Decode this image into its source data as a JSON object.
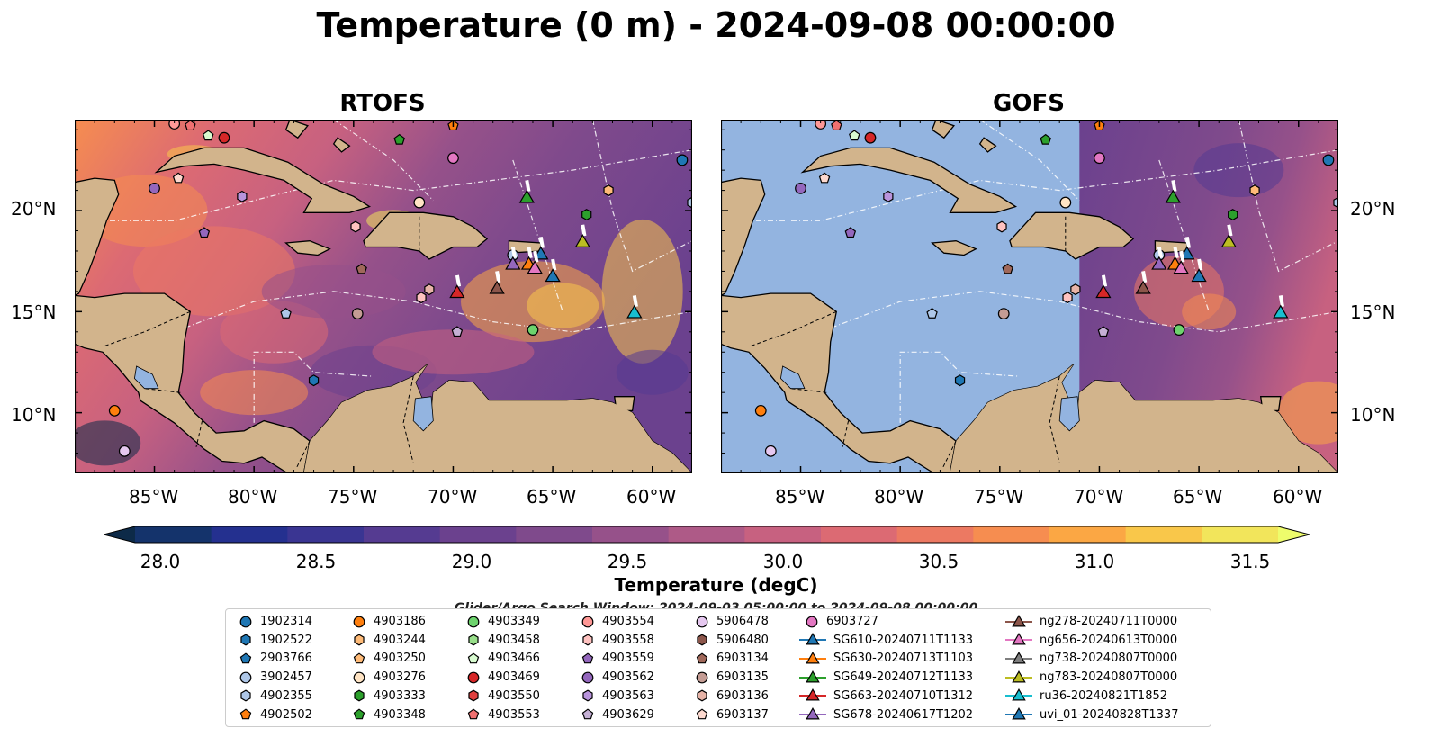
{
  "title": "Temperature (0 m) - 2024-09-08 00:00:00",
  "panels": [
    {
      "title": "RTOFS"
    },
    {
      "title": "GOFS"
    }
  ],
  "map_extent": {
    "lon": [
      -89,
      -58
    ],
    "lat": [
      7,
      24.5
    ]
  },
  "lon_ticks": [
    "85°W",
    "80°W",
    "75°W",
    "70°W",
    "65°W",
    "60°W"
  ],
  "lat_ticks": [
    "20°N",
    "15°N",
    "10°N"
  ],
  "colorbar": {
    "label": "Temperature (degC)",
    "ticks": [
      "28.0",
      "28.5",
      "29.0",
      "29.5",
      "30.0",
      "30.5",
      "31.0",
      "31.5"
    ],
    "range": [
      27.75,
      31.75
    ],
    "extend": "both",
    "colors": [
      "#0d2a48",
      "#14336b",
      "#24308f",
      "#3a3592",
      "#553b91",
      "#6b418e",
      "#7f4a8c",
      "#96518a",
      "#ae5a87",
      "#c76180",
      "#dc6a73",
      "#ec7962",
      "#f68d50",
      "#fba744",
      "#f9c74a",
      "#f2e55b",
      "#eefc6c"
    ]
  },
  "colors": {
    "land": "#d2b48c",
    "gofs_mask": "#93b4e0",
    "lakes": "#93b4e0"
  },
  "search_window": "Glider/Argo Search Window: 2024-09-03 05:00:00 to 2024-09-08 00:00:00",
  "legend": {
    "columns": [
      [
        {
          "label": "1902314",
          "marker": "circle",
          "color": "#1f77b4"
        },
        {
          "label": "1902522",
          "marker": "hexagon",
          "color": "#1f77b4"
        },
        {
          "label": "2903766",
          "marker": "pentagon",
          "color": "#1f77b4"
        },
        {
          "label": "3902457",
          "marker": "circle",
          "color": "#aec7e8"
        },
        {
          "label": "4902355",
          "marker": "hexagon",
          "color": "#aec7e8"
        },
        {
          "label": "4902502",
          "marker": "pentagon",
          "color": "#ff7f0e"
        }
      ],
      [
        {
          "label": "4903186",
          "marker": "circle",
          "color": "#ff7f0e"
        },
        {
          "label": "4903244",
          "marker": "hexagon",
          "color": "#ffbb78"
        },
        {
          "label": "4903250",
          "marker": "pentagon",
          "color": "#ffbb78"
        },
        {
          "label": "4903276",
          "marker": "circle",
          "color": "#ffe4c4"
        },
        {
          "label": "4903333",
          "marker": "hexagon",
          "color": "#2ca02c"
        },
        {
          "label": "4903348",
          "marker": "pentagon",
          "color": "#2ca02c"
        }
      ],
      [
        {
          "label": "4903349",
          "marker": "circle",
          "color": "#6dd36d"
        },
        {
          "label": "4903458",
          "marker": "hexagon",
          "color": "#98df8a"
        },
        {
          "label": "4903466",
          "marker": "pentagon",
          "color": "#d8fbd0"
        },
        {
          "label": "4903469",
          "marker": "circle",
          "color": "#d62728"
        },
        {
          "label": "4903550",
          "marker": "hexagon",
          "color": "#e0403f"
        },
        {
          "label": "4903553",
          "marker": "pentagon",
          "color": "#f07070"
        }
      ],
      [
        {
          "label": "4903554",
          "marker": "circle",
          "color": "#ff9896"
        },
        {
          "label": "4903558",
          "marker": "hexagon",
          "color": "#ffc2c0"
        },
        {
          "label": "4903559",
          "marker": "pentagon",
          "color": "#9467bd"
        },
        {
          "label": "4903562",
          "marker": "circle",
          "color": "#9467bd"
        },
        {
          "label": "4903563",
          "marker": "hexagon",
          "color": "#b994dc"
        },
        {
          "label": "4903629",
          "marker": "pentagon",
          "color": "#c5b0d5"
        }
      ],
      [
        {
          "label": "5906478",
          "marker": "circle",
          "color": "#e6c8f0"
        },
        {
          "label": "5906480",
          "marker": "hexagon",
          "color": "#8c564b"
        },
        {
          "label": "6903134",
          "marker": "pentagon",
          "color": "#a0685a"
        },
        {
          "label": "6903135",
          "marker": "circle",
          "color": "#c49c94"
        },
        {
          "label": "6903136",
          "marker": "hexagon",
          "color": "#e8b4a8"
        },
        {
          "label": "6903137",
          "marker": "pentagon",
          "color": "#fdd9cf"
        }
      ],
      [
        {
          "label": "6903727",
          "marker": "circle",
          "color": "#e377c2"
        },
        {
          "label": "SG610-20240711T1133",
          "marker": "triangle-line",
          "color": "#1f77b4"
        },
        {
          "label": "SG630-20240713T1103",
          "marker": "triangle-line",
          "color": "#ff7f0e"
        },
        {
          "label": "SG649-20240712T1133",
          "marker": "triangle-line",
          "color": "#2ca02c"
        },
        {
          "label": "SG663-20240710T1312",
          "marker": "triangle-line",
          "color": "#d62728"
        },
        {
          "label": "SG678-20240617T1202",
          "marker": "triangle-line",
          "color": "#9467bd"
        }
      ],
      [
        {
          "label": "ng278-20240711T0000",
          "marker": "triangle-line",
          "color": "#8c564b"
        },
        {
          "label": "ng656-20240613T0000",
          "marker": "triangle-line",
          "color": "#e377c2"
        },
        {
          "label": "ng738-20240807T0000",
          "marker": "triangle-line",
          "color": "#7f7f7f"
        },
        {
          "label": "ng783-20240807T0000",
          "marker": "triangle-line",
          "color": "#bcbd22"
        },
        {
          "label": "ru36-20240821T1852",
          "marker": "triangle-line",
          "color": "#17becf"
        },
        {
          "label": "uvi_01-20240828T1337",
          "marker": "triangle-line",
          "color": "#1f77b4"
        }
      ]
    ]
  },
  "floats": [
    {
      "lon": -87.0,
      "lat": 10.1,
      "marker": "circle",
      "color": "#ff7f0e"
    },
    {
      "lon": -86.5,
      "lat": 8.1,
      "marker": "circle",
      "color": "#e6c8f0"
    },
    {
      "lon": -85.0,
      "lat": 21.1,
      "marker": "circle",
      "color": "#9467bd"
    },
    {
      "lon": -83.8,
      "lat": 21.6,
      "marker": "pentagon",
      "color": "#fdd9cf"
    },
    {
      "lon": -82.3,
      "lat": 23.7,
      "marker": "pentagon",
      "color": "#d8fbd0"
    },
    {
      "lon": -81.5,
      "lat": 23.6,
      "marker": "circle",
      "color": "#d62728"
    },
    {
      "lon": -82.5,
      "lat": 18.9,
      "marker": "pentagon",
      "color": "#9467bd"
    },
    {
      "lon": -80.6,
      "lat": 20.7,
      "marker": "hexagon",
      "color": "#b994dc"
    },
    {
      "lon": -78.4,
      "lat": 14.9,
      "marker": "pentagon",
      "color": "#aec7e8"
    },
    {
      "lon": -77.0,
      "lat": 11.6,
      "marker": "hexagon",
      "color": "#1f77b4"
    },
    {
      "lon": -74.9,
      "lat": 19.2,
      "marker": "hexagon",
      "color": "#ffc2c0"
    },
    {
      "lon": -74.6,
      "lat": 17.1,
      "marker": "pentagon",
      "color": "#a0685a"
    },
    {
      "lon": -74.8,
      "lat": 14.9,
      "marker": "circle",
      "color": "#c49c94"
    },
    {
      "lon": -72.7,
      "lat": 23.5,
      "marker": "pentagon",
      "color": "#2ca02c"
    },
    {
      "lon": -71.7,
      "lat": 20.4,
      "marker": "circle",
      "color": "#ffe4c4"
    },
    {
      "lon": -71.6,
      "lat": 15.7,
      "marker": "hexagon",
      "color": "#ffc2c0"
    },
    {
      "lon": -71.2,
      "lat": 16.1,
      "marker": "hexagon",
      "color": "#e8b4a8"
    },
    {
      "lon": -70.0,
      "lat": 22.6,
      "marker": "circle",
      "color": "#e377c2"
    },
    {
      "lon": -70.0,
      "lat": 24.2,
      "marker": "pentagon",
      "color": "#ff7f0e"
    },
    {
      "lon": -69.8,
      "lat": 14.0,
      "marker": "pentagon",
      "color": "#c5b0d5"
    },
    {
      "lon": -67.0,
      "lat": 17.8,
      "marker": "circle",
      "color": "#aec7e8"
    },
    {
      "lon": -66.0,
      "lat": 14.1,
      "marker": "circle",
      "color": "#6dd36d"
    },
    {
      "lon": -63.3,
      "lat": 19.8,
      "marker": "hexagon",
      "color": "#2ca02c"
    },
    {
      "lon": -62.2,
      "lat": 21.0,
      "marker": "hexagon",
      "color": "#ffbb78"
    },
    {
      "lon": -58.5,
      "lat": 22.5,
      "marker": "circle",
      "color": "#1f77b4"
    },
    {
      "lon": -84.0,
      "lat": 24.3,
      "marker": "circle",
      "color": "#ff9896"
    },
    {
      "lon": -83.2,
      "lat": 24.2,
      "marker": "pentagon",
      "color": "#f07070"
    },
    {
      "lon": -58.0,
      "lat": 20.4,
      "marker": "hexagon",
      "color": "#aec7e8"
    }
  ],
  "gliders": [
    {
      "lon": -66.3,
      "lat": 20.6,
      "color": "#2ca02c"
    },
    {
      "lon": -63.5,
      "lat": 18.4,
      "color": "#bcbd22"
    },
    {
      "lon": -67.0,
      "lat": 17.3,
      "color": "#9467bd"
    },
    {
      "lon": -66.2,
      "lat": 17.3,
      "color": "#ff7f0e"
    },
    {
      "lon": -65.6,
      "lat": 17.8,
      "color": "#1f77b4"
    },
    {
      "lon": -65.9,
      "lat": 17.1,
      "color": "#e377c2"
    },
    {
      "lon": -65.0,
      "lat": 16.7,
      "color": "#1f77b4"
    },
    {
      "lon": -67.8,
      "lat": 16.1,
      "color": "#8c564b"
    },
    {
      "lon": -69.8,
      "lat": 15.9,
      "color": "#d62728"
    },
    {
      "lon": -60.9,
      "lat": 14.9,
      "color": "#17becf"
    }
  ]
}
